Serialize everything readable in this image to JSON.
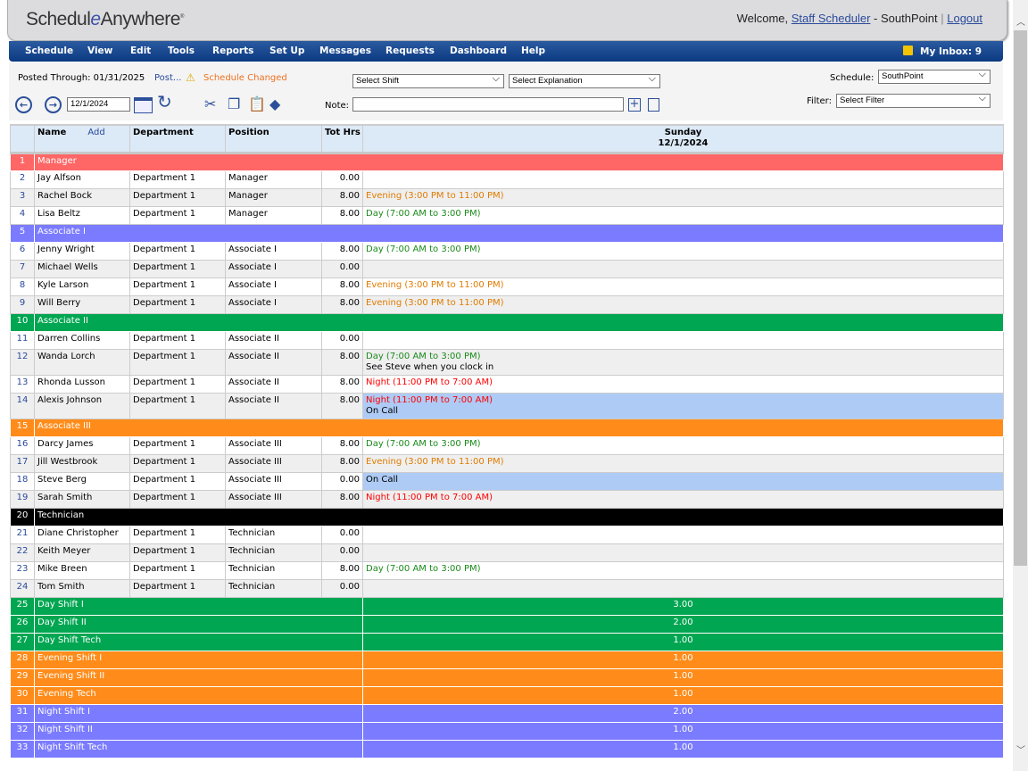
{
  "header": {
    "logo": "ScheduleAnywhere",
    "welcome": "Welcome,",
    "user": "Staff Scheduler",
    "location": "- SouthPoint",
    "sep": "|",
    "logout": "Logout"
  },
  "menu": [
    "Schedule",
    "View",
    "Edit",
    "Tools",
    "Reports",
    "Set Up",
    "Messages",
    "Requests",
    "Dashboard",
    "Help"
  ],
  "inbox": "My Inbox: 9",
  "toolbar": {
    "posted": "Posted Through: 01/31/2025",
    "post_link": "Post...",
    "changed": "Schedule Changed",
    "date": "12/1/2024",
    "note_label": "Note:",
    "note_value": "",
    "shift_select": "Select Shift",
    "explanation_select": "Select Explanation",
    "schedule_label": "Schedule:",
    "schedule_value": "SouthPoint",
    "filter_label": "Filter:",
    "filter_value": "Select Filter"
  },
  "colors": {
    "Manager": "#ff6666",
    "Associate I": "#7b7bff",
    "Associate II": "#00a651",
    "Associate III": "#ff8c1a",
    "Technician": "#000000",
    "day": "#1a8a1a",
    "evening": "#e07b00",
    "night": "#ff0000",
    "oncall": "#aecbf5"
  },
  "columns": {
    "name": "Name",
    "add": "Add",
    "department": "Department",
    "position": "Position",
    "hours": "Tot Hrs",
    "day": "Sunday",
    "date": "12/1/2024"
  },
  "rows": [
    {
      "n": "1",
      "group": "Manager"
    },
    {
      "n": "2",
      "name": "Jay Alfson",
      "dept": "Department 1",
      "pos": "Manager",
      "hrs": "0.00"
    },
    {
      "n": "3",
      "name": "Rachel Bock",
      "dept": "Department 1",
      "pos": "Manager",
      "hrs": "8.00",
      "shift": "Evening (3:00 PM to 11:00 PM)",
      "type": "evening"
    },
    {
      "n": "4",
      "name": "Lisa Beltz",
      "dept": "Department 1",
      "pos": "Manager",
      "hrs": "8.00",
      "shift": "Day (7:00 AM to 3:00 PM)",
      "type": "day"
    },
    {
      "n": "5",
      "group": "Associate I"
    },
    {
      "n": "6",
      "name": "Jenny Wright",
      "dept": "Department 1",
      "pos": "Associate I",
      "hrs": "8.00",
      "shift": "Day (7:00 AM to 3:00 PM)",
      "type": "day"
    },
    {
      "n": "7",
      "name": "Michael Wells",
      "dept": "Department 1",
      "pos": "Associate I",
      "hrs": "0.00"
    },
    {
      "n": "8",
      "name": "Kyle Larson",
      "dept": "Department 1",
      "pos": "Associate I",
      "hrs": "8.00",
      "shift": "Evening (3:00 PM to 11:00 PM)",
      "type": "evening"
    },
    {
      "n": "9",
      "name": "Will Berry",
      "dept": "Department 1",
      "pos": "Associate I",
      "hrs": "8.00",
      "shift": "Evening (3:00 PM to 11:00 PM)",
      "type": "evening"
    },
    {
      "n": "10",
      "group": "Associate II"
    },
    {
      "n": "11",
      "name": "Darren Collins",
      "dept": "Department 1",
      "pos": "Associate II",
      "hrs": "0.00"
    },
    {
      "n": "12",
      "name": "Wanda Lorch",
      "dept": "Department 1",
      "pos": "Associate II",
      "hrs": "8.00",
      "shift": "Day (7:00 AM to 3:00 PM)",
      "type": "day",
      "note": "See Steve when you clock in"
    },
    {
      "n": "13",
      "name": "Rhonda Lusson",
      "dept": "Department 1",
      "pos": "Associate II",
      "hrs": "8.00",
      "shift": "Night (11:00 PM to 7:00 AM)",
      "type": "night"
    },
    {
      "n": "14",
      "name": "Alexis Johnson",
      "dept": "Department 1",
      "pos": "Associate II",
      "hrs": "8.00",
      "shift": "Night (11:00 PM to 7:00 AM)",
      "type": "night",
      "note": "On Call",
      "oncall": true
    },
    {
      "n": "15",
      "group": "Associate III"
    },
    {
      "n": "16",
      "name": "Darcy James",
      "dept": "Department 1",
      "pos": "Associate III",
      "hrs": "8.00",
      "shift": "Day (7:00 AM to 3:00 PM)",
      "type": "day"
    },
    {
      "n": "17",
      "name": "Jill Westbrook",
      "dept": "Department 1",
      "pos": "Associate III",
      "hrs": "8.00",
      "shift": "Evening (3:00 PM to 11:00 PM)",
      "type": "evening"
    },
    {
      "n": "18",
      "name": "Steve Berg",
      "dept": "Department 1",
      "pos": "Associate III",
      "hrs": "0.00",
      "note": "On Call",
      "oncall": true
    },
    {
      "n": "19",
      "name": "Sarah Smith",
      "dept": "Department 1",
      "pos": "Associate III",
      "hrs": "8.00",
      "shift": "Night (11:00 PM to 7:00 AM)",
      "type": "night"
    },
    {
      "n": "20",
      "group": "Technician"
    },
    {
      "n": "21",
      "name": "Diane Christopher",
      "dept": "Department 1",
      "pos": "Technician",
      "hrs": "0.00"
    },
    {
      "n": "22",
      "name": "Keith Meyer",
      "dept": "Department 1",
      "pos": "Technician",
      "hrs": "0.00"
    },
    {
      "n": "23",
      "name": "Mike Breen",
      "dept": "Department 1",
      "pos": "Technician",
      "hrs": "8.00",
      "shift": "Day (7:00 AM to 3:00 PM)",
      "type": "day"
    },
    {
      "n": "24",
      "name": "Tom Smith",
      "dept": "Department 1",
      "pos": "Technician",
      "hrs": "0.00"
    }
  ],
  "totals": [
    {
      "n": "25",
      "label": "Day Shift I",
      "value": "3.00",
      "color": "#00a651"
    },
    {
      "n": "26",
      "label": "Day Shift II",
      "value": "2.00",
      "color": "#00a651"
    },
    {
      "n": "27",
      "label": "Day Shift Tech",
      "value": "1.00",
      "color": "#00a651"
    },
    {
      "n": "28",
      "label": "Evening Shift I",
      "value": "1.00",
      "color": "#ff8c1a"
    },
    {
      "n": "29",
      "label": "Evening Shift II",
      "value": "1.00",
      "color": "#ff8c1a"
    },
    {
      "n": "30",
      "label": "Evening Tech",
      "value": "1.00",
      "color": "#ff8c1a"
    },
    {
      "n": "31",
      "label": "Night Shift I",
      "value": "2.00",
      "color": "#7b7bff"
    },
    {
      "n": "32",
      "label": "Night Shift II",
      "value": "1.00",
      "color": "#7b7bff"
    },
    {
      "n": "33",
      "label": "Night Shift Tech",
      "value": "1.00",
      "color": "#7b7bff"
    }
  ]
}
